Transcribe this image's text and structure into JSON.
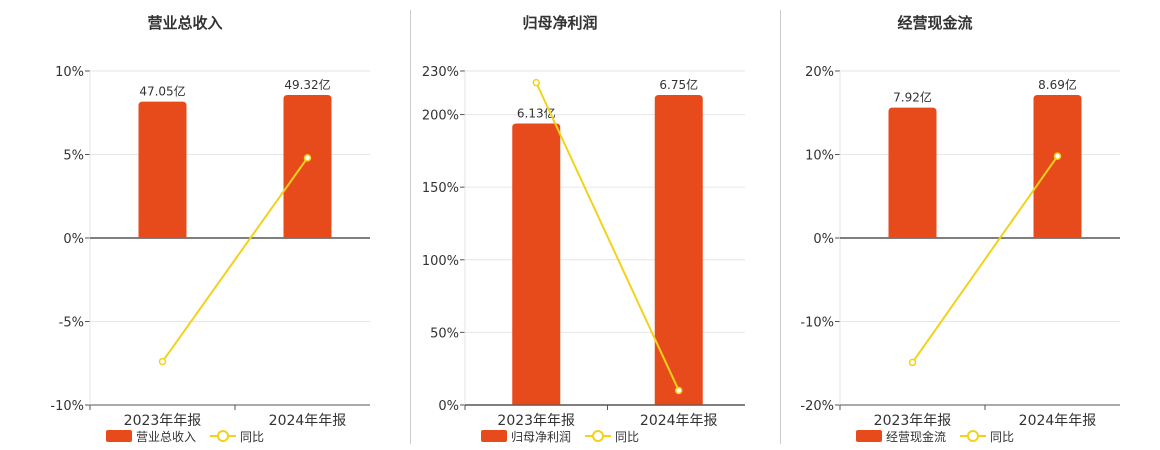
{
  "colors": {
    "bar": "#e84b1b",
    "line": "#f2d21b",
    "grid": "#e6e6e6",
    "axis": "#555555",
    "text": "#333333"
  },
  "chart_data": [
    {
      "type": "bar",
      "title": "营业总收入",
      "categories": [
        "2023年年报",
        "2024年年报"
      ],
      "bar_labels": [
        "47.05亿",
        "49.32亿"
      ],
      "bar_values": [
        47.05,
        49.32
      ],
      "line_values": [
        -7.4,
        4.8
      ],
      "yticks": [
        "10%",
        "5%",
        "0%",
        "-5%",
        "-10%"
      ],
      "ylim": [
        -10,
        10
      ],
      "legend": {
        "bar": "营业总收入",
        "line": "同比"
      }
    },
    {
      "type": "bar",
      "title": "归母净利润",
      "categories": [
        "2023年年报",
        "2024年年报"
      ],
      "bar_labels": [
        "6.13亿",
        "6.75亿"
      ],
      "bar_values": [
        6.13,
        6.75
      ],
      "line_values": [
        222,
        10
      ],
      "yticks": [
        "230%",
        "200%",
        "150%",
        "100%",
        "50%",
        "0%"
      ],
      "ylim": [
        0,
        230
      ],
      "legend": {
        "bar": "归母净利润",
        "line": "同比"
      }
    },
    {
      "type": "bar",
      "title": "经营现金流",
      "categories": [
        "2023年年报",
        "2024年年报"
      ],
      "bar_labels": [
        "7.92亿",
        "8.69亿"
      ],
      "bar_values": [
        7.92,
        8.69
      ],
      "line_values": [
        -14.9,
        9.8
      ],
      "yticks": [
        "20%",
        "10%",
        "0%",
        "-10%",
        "-20%"
      ],
      "ylim": [
        -20,
        20
      ],
      "legend": {
        "bar": "经营现金流",
        "line": "同比"
      }
    }
  ]
}
